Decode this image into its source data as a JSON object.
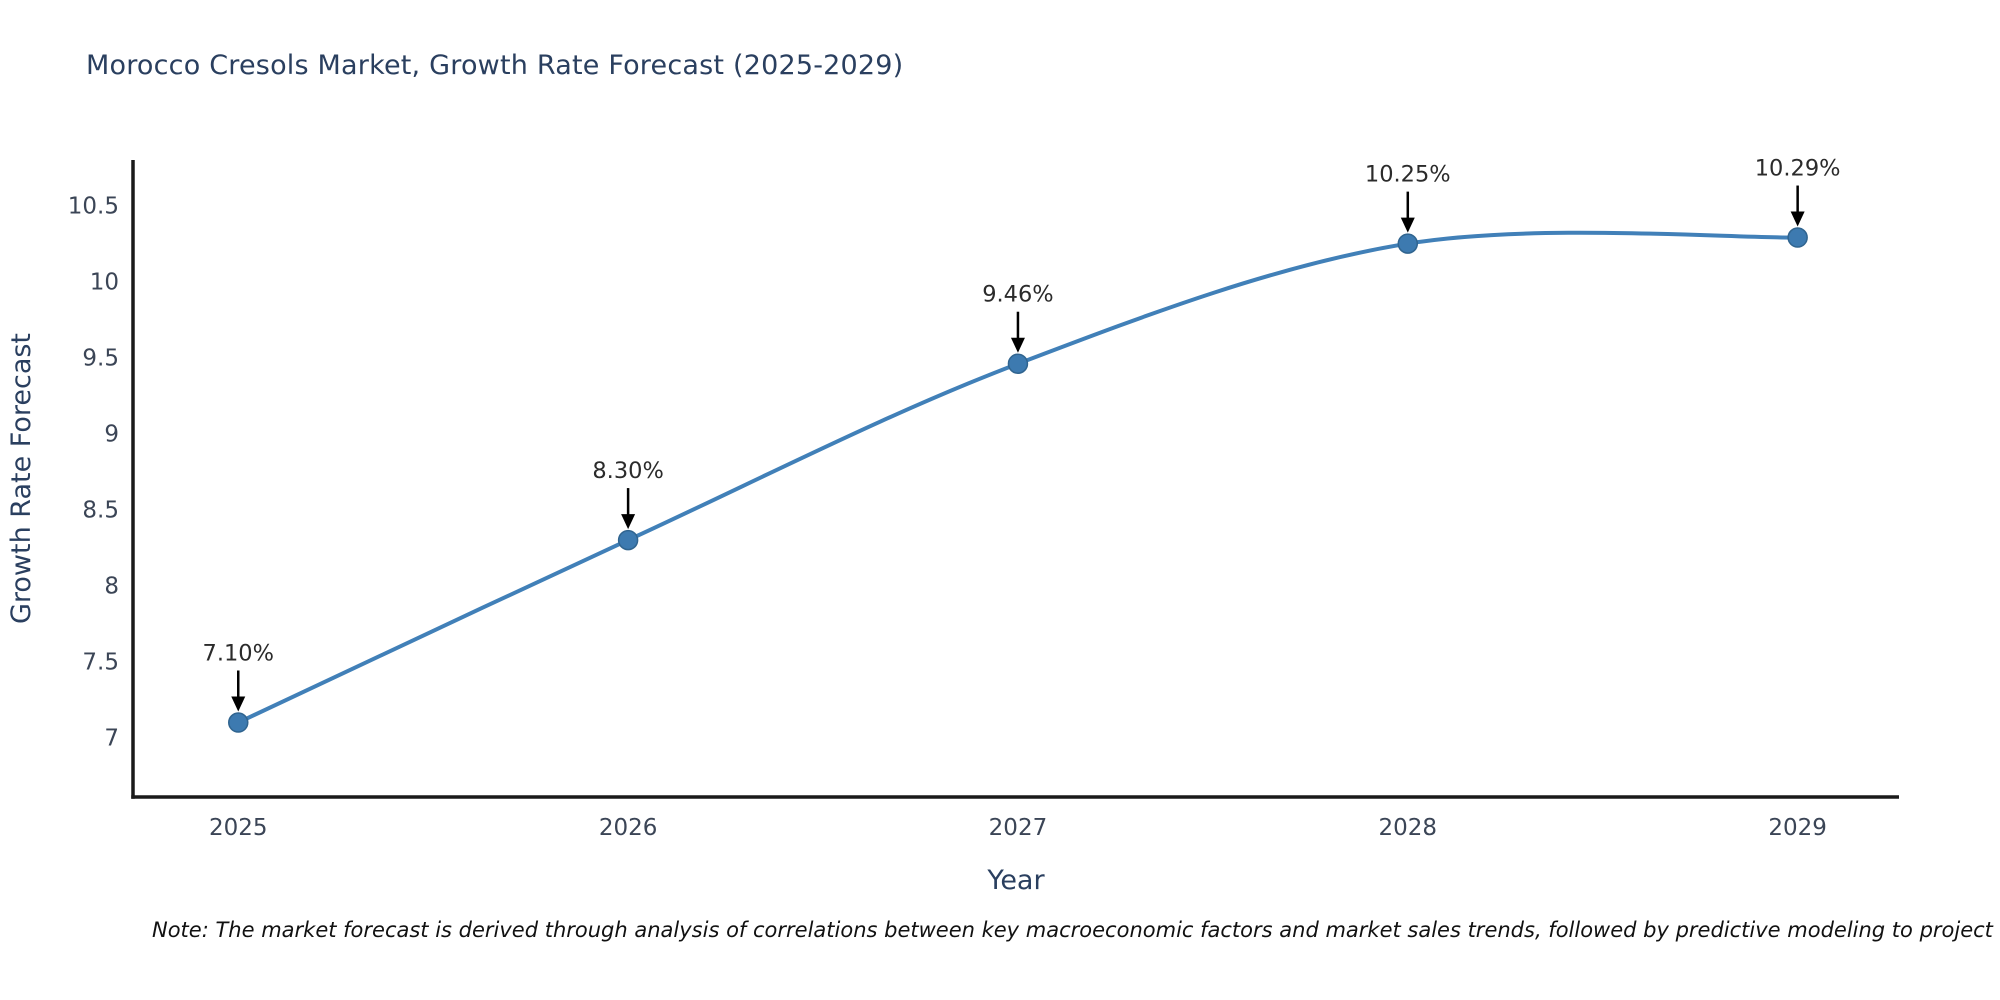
{
  "page": {
    "title": "Morocco Cresols Market, Growth Rate Forecast (2025-2029)",
    "note": "Note: The market forecast is derived through analysis of correlations between key macroeconomic factors and market sales trends, followed by predictive modeling to project future sales"
  },
  "chart_data": {
    "type": "line",
    "title": "Morocco Cresols Market, Growth Rate Forecast (2025-2029)",
    "xlabel": "Year",
    "ylabel": "Growth Rate Forecast",
    "x": [
      2025,
      2026,
      2027,
      2028,
      2029
    ],
    "series": [
      {
        "name": "Growth Rate Forecast",
        "values": [
          7.1,
          8.3,
          9.46,
          10.25,
          10.29
        ]
      }
    ],
    "point_labels": [
      "7.10%",
      "8.30%",
      "9.46%",
      "10.25%",
      "10.29%"
    ],
    "x_tick_labels": [
      "2025",
      "2026",
      "2027",
      "2028",
      "2029"
    ],
    "y_ticks": [
      7,
      7.5,
      8,
      8.5,
      9,
      9.5,
      10,
      10.5
    ],
    "xlim": [
      2024.73,
      2029.26
    ],
    "ylim": [
      6.61,
      10.8
    ],
    "line_shape": "spline",
    "grid": false,
    "legend_position": "none",
    "colors": {
      "line": "#4180b8",
      "marker_fill": "#3d7ab0",
      "marker_edge": "#30648f",
      "axis": "#1a1a1a",
      "axis_title_text": "#2a3f5f",
      "tick_text": "#3b4556",
      "annotation_text": "#2b2b2b",
      "arrow": "#000000",
      "title_text": "#2a3f5f",
      "background": "#ffffff"
    }
  }
}
